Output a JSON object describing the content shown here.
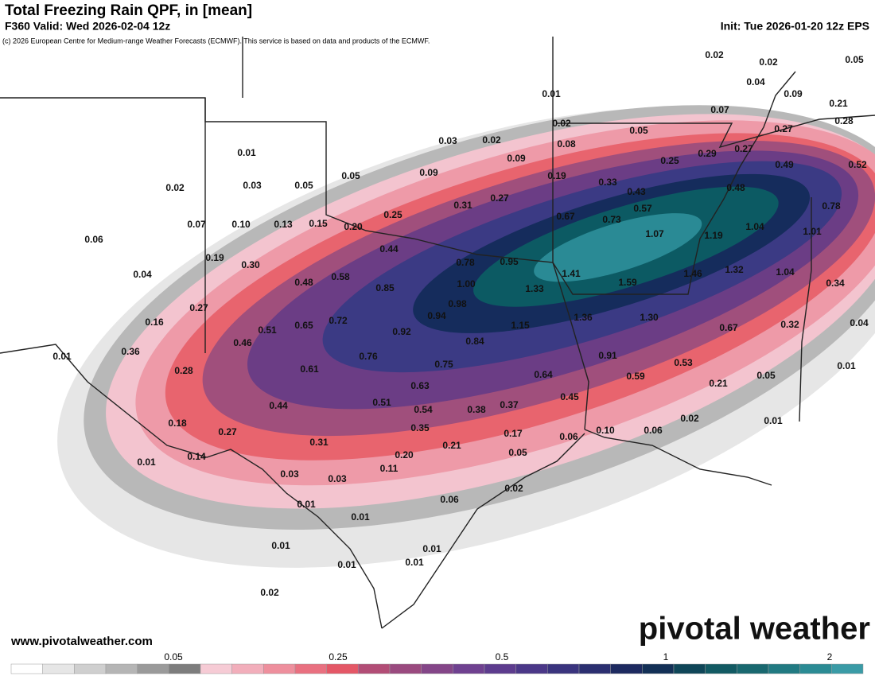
{
  "header": {
    "title": "Total Freezing Rain QPF, in [mean]",
    "valid": "F360 Valid: Wed 2026-02-04 12z",
    "init": "Init: Tue 2026-01-20 12z EPS",
    "copyright": "(c) 2026 European Centre for Medium-range Weather Forecasts (ECMWF). This service is based on data and products of the ECMWF."
  },
  "map_labels": [
    "0.02",
    "0.02",
    "0.05",
    "0.04",
    "0.09",
    "0.01",
    "0.07",
    "0.21",
    "0.02",
    "0.05",
    "0.27",
    "0.28",
    "0.03",
    "0.02",
    "0.08",
    "0.29",
    "0.27",
    "0.01",
    "0.09",
    "0.25",
    "0.49",
    "0.52",
    "0.05",
    "0.09",
    "0.19",
    "0.33",
    "0.02",
    "0.03",
    "0.05",
    "0.43",
    "0.48",
    "0.27",
    "0.31",
    "0.57",
    "0.78",
    "0.25",
    "0.67",
    "0.73",
    "0.07",
    "0.10",
    "0.13",
    "0.15",
    "0.20",
    "1.04",
    "1.01",
    "1.07",
    "1.19",
    "0.06",
    "0.44",
    "0.19",
    "0.30",
    "0.78",
    "0.95",
    "1.41",
    "1.32",
    "0.04",
    "1.46",
    "1.04",
    "0.58",
    "0.48",
    "1.00",
    "1.59",
    "0.34",
    "0.85",
    "1.33",
    "0.27",
    "0.98",
    "0.94",
    "1.36",
    "1.30",
    "0.16",
    "0.51",
    "0.65",
    "0.72",
    "1.15",
    "0.67",
    "0.32",
    "0.04",
    "0.92",
    "0.46",
    "0.84",
    "0.36",
    "0.76",
    "0.91",
    "0.01",
    "0.53",
    "0.75",
    "0.61",
    "0.28",
    "0.64",
    "0.59",
    "0.01",
    "0.05",
    "0.21",
    "0.63",
    "0.45",
    "0.44",
    "0.51",
    "0.54",
    "0.38",
    "0.37",
    "0.02",
    "0.01",
    "0.18",
    "0.35",
    "0.27",
    "0.10",
    "0.06",
    "0.17",
    "0.06",
    "0.31",
    "0.21",
    "0.14",
    "0.20",
    "0.05",
    "0.01",
    "0.11",
    "0.03",
    "0.03",
    "0.02",
    "0.06",
    "0.01",
    "0.01",
    "0.01",
    "0.01",
    "0.01",
    "0.01",
    "0.02"
  ],
  "footer": {
    "website": "www.pivotalweather.com",
    "logo": "pivotal weather"
  },
  "colorbar": {
    "ticks": [
      "0.05",
      "0.25",
      "0.5",
      "1",
      "2"
    ]
  }
}
